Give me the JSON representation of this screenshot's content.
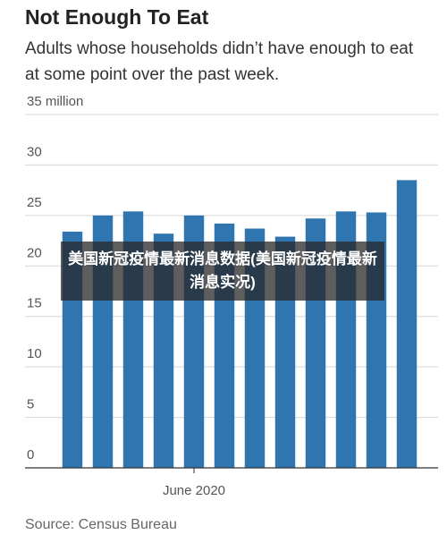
{
  "chart_data": {
    "type": "bar",
    "title": "Not Enough To Eat",
    "subtitle": "Adults whose households didn’t have enough to eat at some point over the past week.",
    "categories": [
      null,
      null,
      null,
      null,
      "June 2020",
      null,
      null,
      null,
      null,
      null,
      null,
      null
    ],
    "values": [
      23.4,
      25.0,
      25.4,
      23.2,
      25.0,
      24.2,
      23.7,
      22.9,
      24.7,
      25.4,
      25.3,
      28.5
    ],
    "color": "#2f76b1",
    "ylim": [
      0,
      35
    ],
    "yticks": [
      0,
      5,
      10,
      15,
      20,
      25,
      30,
      {
        "value": 35,
        "label": "35 million"
      }
    ],
    "grid": true,
    "source": "Source: Census Bureau",
    "annotation": "美国新冠疫情最新消息数据(美国新冠疫情最新消息实况)"
  }
}
